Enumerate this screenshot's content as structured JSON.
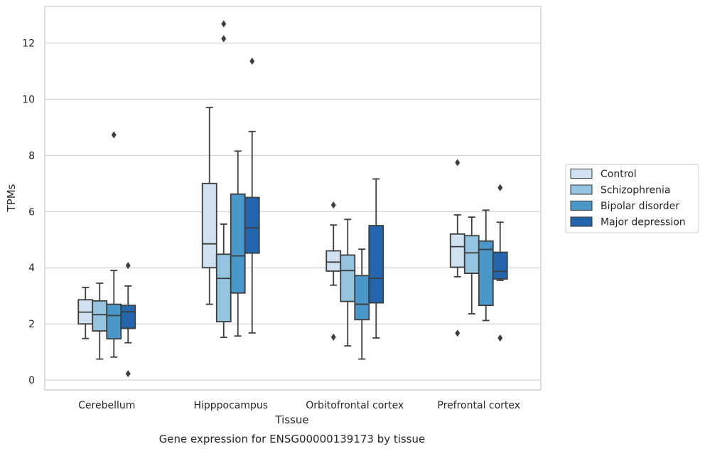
{
  "caption": "Gene expression for ENSG00000139173 by tissue",
  "chart_data": {
    "type": "box",
    "xlabel": "Tissue",
    "ylabel": "TPMs",
    "ylim": [
      -0.35,
      13.3
    ],
    "yticks": [
      0,
      2,
      4,
      6,
      8,
      10,
      12
    ],
    "grid": true,
    "legend_position": "outside-right",
    "categories": [
      "Cerebellum",
      "Hipppocampus",
      "Orbitofrontal cortex",
      "Prefrontal cortex"
    ],
    "series": [
      {
        "name": "Control",
        "color": "#d0e1f2",
        "boxes": [
          {
            "whislo": 1.48,
            "q1": 2.0,
            "med": 2.42,
            "q3": 2.86,
            "whishi": 3.3,
            "fliers": []
          },
          {
            "whislo": 2.7,
            "q1": 4.0,
            "med": 4.85,
            "q3": 7.0,
            "whishi": 9.7,
            "fliers": []
          },
          {
            "whislo": 3.38,
            "q1": 3.88,
            "med": 4.2,
            "q3": 4.6,
            "whishi": 5.52,
            "fliers": [
              6.23,
              1.53
            ]
          },
          {
            "whislo": 3.68,
            "q1": 4.02,
            "med": 4.75,
            "q3": 5.2,
            "whishi": 5.88,
            "fliers": [
              7.74,
              1.67
            ]
          }
        ]
      },
      {
        "name": "Schizophrenia",
        "color": "#94c4df",
        "boxes": [
          {
            "whislo": 0.75,
            "q1": 1.75,
            "med": 2.33,
            "q3": 2.82,
            "whishi": 3.45,
            "fliers": []
          },
          {
            "whislo": 1.52,
            "q1": 2.08,
            "med": 3.62,
            "q3": 4.48,
            "whishi": 5.55,
            "fliers": [
              12.15,
              12.68
            ]
          },
          {
            "whislo": 1.22,
            "q1": 2.8,
            "med": 3.9,
            "q3": 4.45,
            "whishi": 5.72,
            "fliers": []
          },
          {
            "whislo": 2.36,
            "q1": 3.8,
            "med": 4.53,
            "q3": 5.14,
            "whishi": 5.8,
            "fliers": []
          }
        ]
      },
      {
        "name": "Bipolar disorder",
        "color": "#4a98c9",
        "boxes": [
          {
            "whislo": 0.82,
            "q1": 1.47,
            "med": 2.3,
            "q3": 2.7,
            "whishi": 3.9,
            "fliers": [
              8.73
            ]
          },
          {
            "whislo": 1.57,
            "q1": 3.1,
            "med": 4.42,
            "q3": 6.62,
            "whishi": 8.15,
            "fliers": []
          },
          {
            "whislo": 0.75,
            "q1": 2.15,
            "med": 2.7,
            "q3": 3.72,
            "whishi": 4.66,
            "fliers": []
          },
          {
            "whislo": 2.12,
            "q1": 2.66,
            "med": 4.65,
            "q3": 4.95,
            "whishi": 6.05,
            "fliers": []
          }
        ]
      },
      {
        "name": "Major depression",
        "color": "#2366ad",
        "boxes": [
          {
            "whislo": 1.33,
            "q1": 1.84,
            "med": 2.43,
            "q3": 2.66,
            "whishi": 3.35,
            "fliers": [
              4.08,
              0.23
            ]
          },
          {
            "whislo": 1.68,
            "q1": 4.52,
            "med": 5.42,
            "q3": 6.5,
            "whishi": 8.85,
            "fliers": [
              11.35
            ]
          },
          {
            "whislo": 1.5,
            "q1": 2.75,
            "med": 3.62,
            "q3": 5.5,
            "whishi": 7.16,
            "fliers": []
          },
          {
            "whislo": 3.55,
            "q1": 3.6,
            "med": 3.87,
            "q3": 4.55,
            "whishi": 5.62,
            "fliers": [
              6.85,
              1.5
            ]
          }
        ]
      }
    ]
  }
}
